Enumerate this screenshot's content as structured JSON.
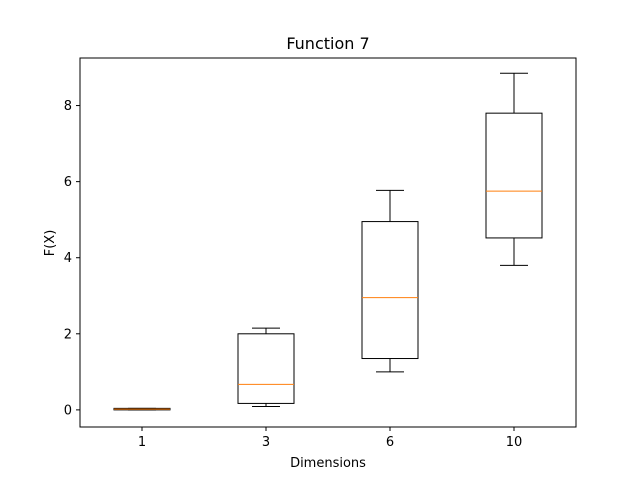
{
  "chart_data": {
    "type": "boxplot",
    "title": "Function 7",
    "xlabel": "Dimensions",
    "ylabel": "F(X)",
    "categories": [
      "1",
      "3",
      "6",
      "10"
    ],
    "boxes": [
      {
        "category": "1",
        "whisker_low": 0.0,
        "q1": 0.0,
        "median": 0.02,
        "q3": 0.04,
        "whisker_high": 0.04
      },
      {
        "category": "3",
        "whisker_low": 0.09,
        "q1": 0.17,
        "median": 0.67,
        "q3": 2.0,
        "whisker_high": 2.15
      },
      {
        "category": "6",
        "whisker_low": 1.0,
        "q1": 1.35,
        "median": 2.95,
        "q3": 4.95,
        "whisker_high": 5.77
      },
      {
        "category": "10",
        "whisker_low": 3.8,
        "q1": 4.52,
        "median": 5.75,
        "q3": 7.8,
        "whisker_high": 8.85
      }
    ],
    "ylim": [
      -0.45,
      9.25
    ],
    "yticks": [
      0,
      2,
      4,
      6,
      8
    ],
    "grid": false,
    "colors": {
      "box": "#000000",
      "median": "#ff7f0e"
    }
  }
}
